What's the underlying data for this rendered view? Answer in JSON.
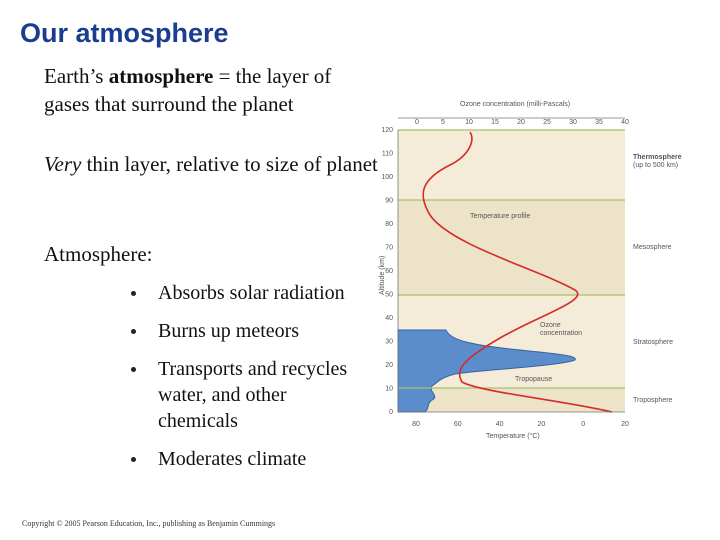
{
  "header": {
    "title": "Our atmosphere"
  },
  "body": {
    "para1": [
      "Earth’s ",
      "atmosphere",
      " = the layer of gases that surround the planet"
    ],
    "para2": [
      "Very",
      " thin layer, relative to size of planet"
    ],
    "para3": "Atmosphere:",
    "bullets": [
      "Absorbs solar radiation",
      "Burns up meteors",
      "Transports and recycles water, and other chemicals",
      "Moderates climate"
    ]
  },
  "figure": {
    "top_axis_label": "Ozone concentration (milli-Pascals)",
    "top_ticks": [
      "0",
      "5",
      "10",
      "15",
      "20",
      "25",
      "30",
      "35",
      "40"
    ],
    "left_axis_label": "Altitude (km)",
    "left_ticks": [
      "0",
      "10",
      "20",
      "30",
      "40",
      "50",
      "60",
      "70",
      "80",
      "90",
      "100",
      "110",
      "120"
    ],
    "bottom_axis_label": "Temperature (°C)",
    "bottom_ticks": [
      "80",
      "60",
      "40",
      "20",
      "0",
      "20"
    ],
    "layers": [
      [
        "Thermosphere",
        "(up to 500 km)"
      ],
      [
        "Mesosphere"
      ],
      [
        "Stratosphere"
      ],
      [
        "Troposphere"
      ]
    ],
    "annotations": {
      "temperature": "Temperature profile",
      "ozone": [
        "Ozone",
        "concentration"
      ],
      "tropopause": "Tropopause"
    }
  },
  "footer": {
    "copyright": "Copyright © 2005 Pearson Education, Inc., publishing as Benjamin Cummings"
  }
}
